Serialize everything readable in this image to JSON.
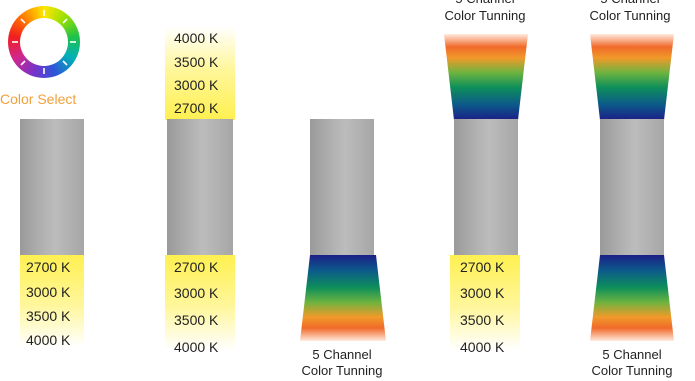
{
  "color_select": {
    "label": "Color Select"
  },
  "warm_temps_top": [
    "4000 K",
    "3500 K",
    "3000 K",
    "2700 K"
  ],
  "warm_temps_bottom": [
    "2700 K",
    "3000 K",
    "3500 K",
    "4000 K"
  ],
  "captions": {
    "five_channel_line1": "5 Channel",
    "five_channel_line2": "Color Tunning"
  },
  "colors": {
    "label_orange": "#f2a03a",
    "warm_yellow": "#fff050",
    "fixture_gray": "#b4b4b4"
  }
}
